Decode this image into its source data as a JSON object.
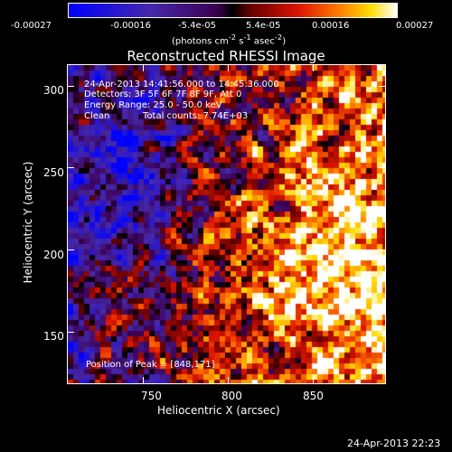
{
  "colorbar": {
    "tick_labels": [
      "-0.00027",
      "-0.00016",
      "-5.4e-05",
      "5.4e-05",
      "0.00016",
      "0.00027"
    ],
    "units_html": "(photons cm<sup>-2</sup> s<sup>-1</sup> asec<sup>-2</sup>)",
    "units": "(photons cm-2 s-1 asec-2)",
    "range": [
      -0.00027,
      0.00027
    ]
  },
  "plot": {
    "title": "Reconstructed RHESSI Image",
    "annotations": {
      "time_range": "24-Apr-2013 14:41:56.000 to 14:45:36.000",
      "detectors": "Detectors: 3F 5F 6F 7F 8F 9F, Att 0",
      "energy": "Energy Range: 25.0 - 50.0 keV",
      "algorithm": "Clean",
      "counts": "Total counts: 7.74E+03",
      "peak": "Position of Peak = [848,171]"
    },
    "x_axis": {
      "label": "Heliocentric X (arcsec)",
      "ticks": [
        "750",
        "800",
        "850"
      ],
      "tick_values": [
        750,
        800,
        850
      ],
      "range": [
        705,
        893
      ]
    },
    "y_axis": {
      "label": "Heliocentric Y (arcsec)",
      "ticks": [
        "150",
        "200",
        "250",
        "300"
      ],
      "tick_values": [
        150,
        200,
        250,
        300
      ],
      "range": [
        118,
        313
      ]
    }
  },
  "footer": {
    "timestamp": "24-Apr-2013 22:23"
  }
}
